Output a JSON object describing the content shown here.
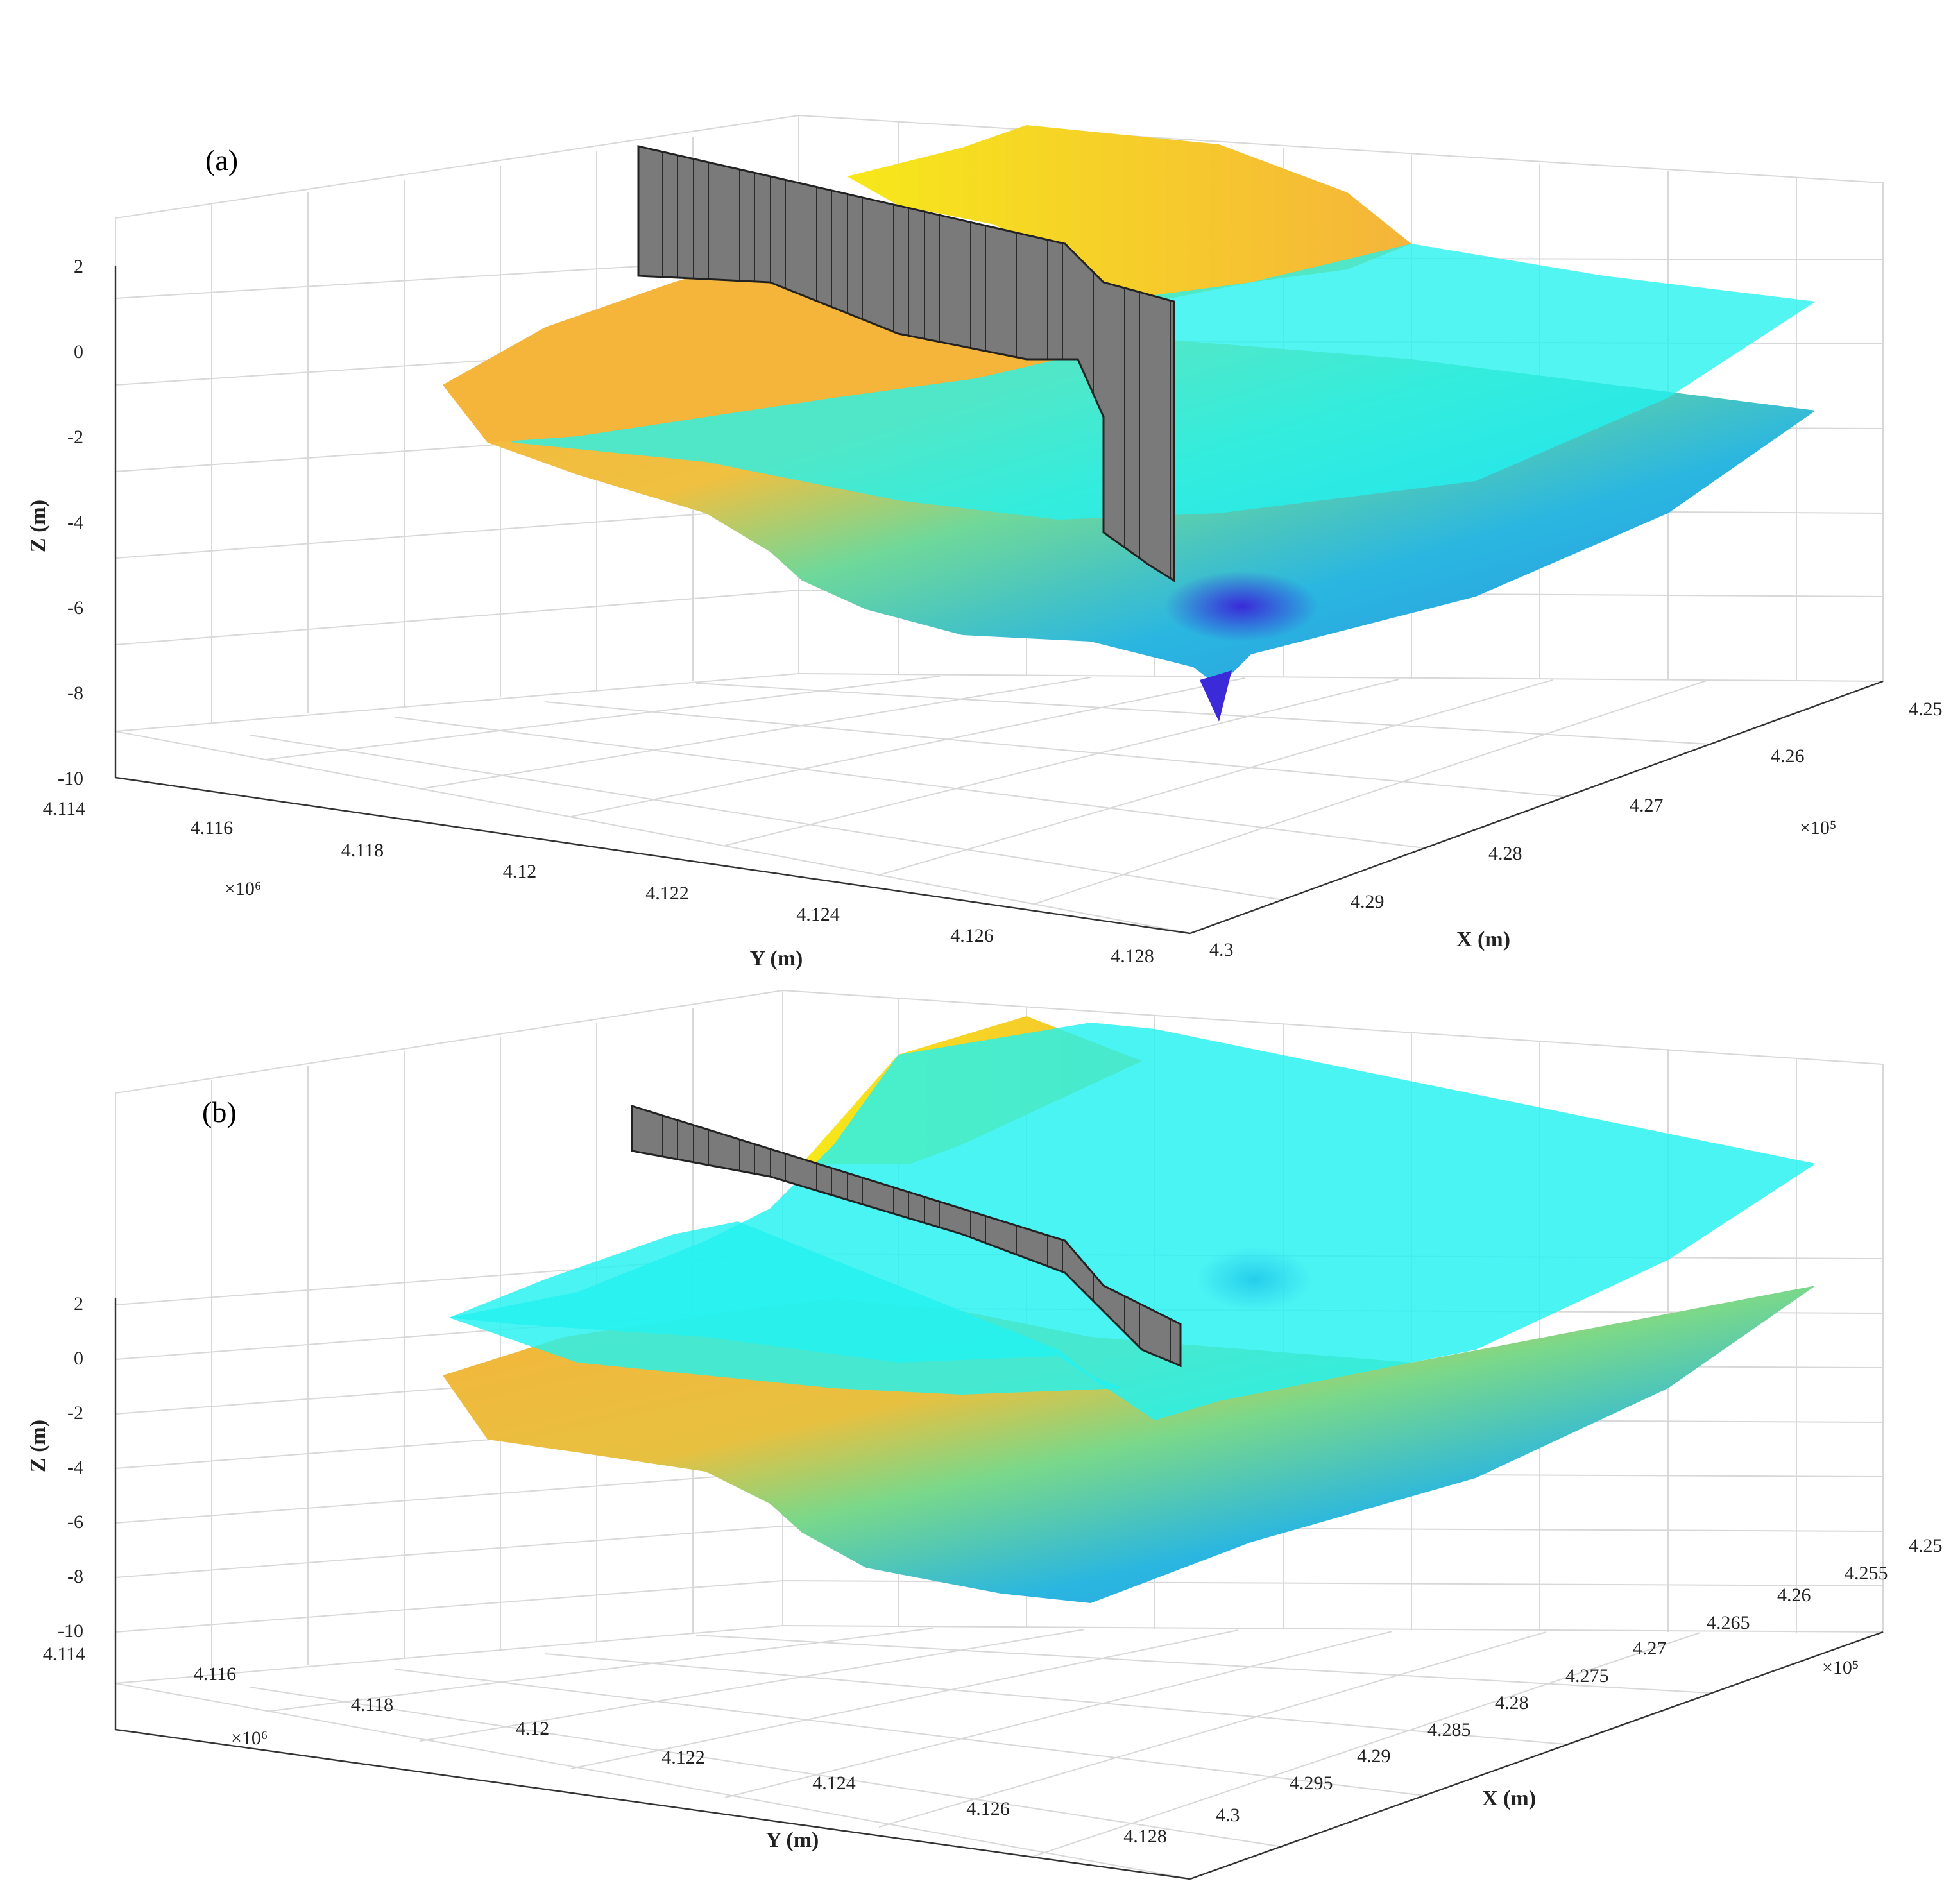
{
  "chart_data": [
    {
      "type": "surface3d",
      "panel_label": "(a)",
      "zlabel": "Z (m)",
      "ylabel": "Y (m)",
      "xlabel": "X (m)",
      "zticks": [
        "2",
        "0",
        "-2",
        "-4",
        "-6",
        "-8",
        "-10"
      ],
      "yticks": [
        "4.114",
        "4.116",
        "4.118",
        "4.12",
        "4.122",
        "4.124",
        "4.126",
        "4.128"
      ],
      "yexp": "×10⁶",
      "xticks": [
        "4.25",
        "4.26",
        "4.27",
        "4.28",
        "4.29",
        "4.3"
      ],
      "xexp": "×10⁵",
      "zlim": [
        -10,
        2
      ],
      "ylim": [
        4114000,
        4128000
      ],
      "xlim": [
        425000,
        430000
      ],
      "grid": true,
      "surfaces": [
        "bed topography (colormap yellow → cyan → blue)",
        "water surface (cyan, transparent)",
        "vertical wall (gray)"
      ]
    },
    {
      "type": "surface3d",
      "panel_label": "(b)",
      "zlabel": "Z (m)",
      "ylabel": "Y (m)",
      "xlabel": "X (m)",
      "zticks": [
        "2",
        "0",
        "-2",
        "-4",
        "-6",
        "-8",
        "-10"
      ],
      "yticks": [
        "4.114",
        "4.116",
        "4.118",
        "4.12",
        "4.122",
        "4.124",
        "4.126",
        "4.128"
      ],
      "yexp": "×10⁶",
      "xticks": [
        "4.25",
        "4.255",
        "4.26",
        "4.265",
        "4.27",
        "4.275",
        "4.28",
        "4.285",
        "4.29",
        "4.295",
        "4.3"
      ],
      "xexp": "×10⁵",
      "zlim": [
        -10,
        2
      ],
      "ylim": [
        4114000,
        4128000
      ],
      "xlim": [
        425000,
        430000
      ],
      "grid": true,
      "surfaces": [
        "bed topography (colormap yellow → cyan → blue)",
        "water surface (cyan, transparent)",
        "vertical wall (gray)"
      ]
    }
  ],
  "colors": {
    "high": "#f7e81a",
    "mid_high": "#f5b43a",
    "mid": "#2ee6c8",
    "water": "#22f2f0",
    "low": "#2f8fe6",
    "deep": "#3a2ad8",
    "wall": "#7a7a7a"
  }
}
